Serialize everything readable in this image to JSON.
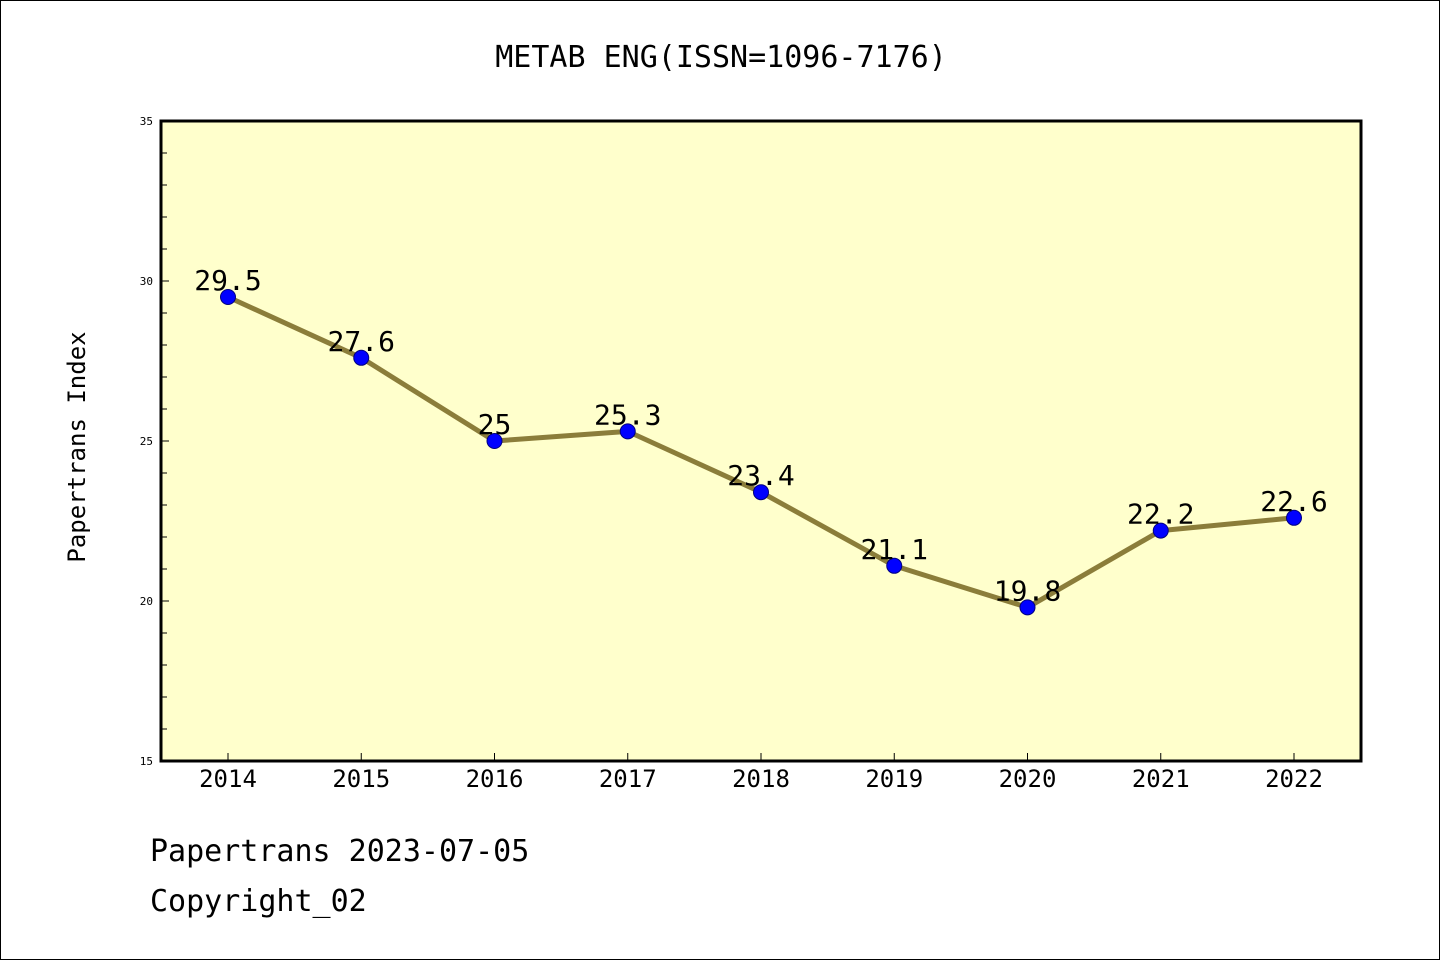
{
  "footer": {
    "date_line": "Papertrans 2023-07-05",
    "copyright": "Copyright_02"
  },
  "colors": {
    "plot_bg": "#ffffcc",
    "line": "#8b7d3a",
    "marker": "#0000ff"
  },
  "chart_data": {
    "type": "line",
    "title": "METAB ENG(ISSN=1096-7176)",
    "xlabel": "",
    "ylabel": "Papertrans Index",
    "categories": [
      "2014",
      "2015",
      "2016",
      "2017",
      "2018",
      "2019",
      "2020",
      "2021",
      "2022"
    ],
    "values": [
      29.5,
      27.6,
      25,
      25.3,
      23.4,
      21.1,
      19.8,
      22.2,
      22.6
    ],
    "data_labels": [
      "29.5",
      "27.6",
      "25",
      "25.3",
      "23.4",
      "21.1",
      "19.8",
      "22.2",
      "22.6"
    ],
    "ylim": [
      15,
      35
    ],
    "yticks": [
      "15",
      "20",
      "25",
      "30",
      "35"
    ],
    "grid": false,
    "legend": "none"
  }
}
